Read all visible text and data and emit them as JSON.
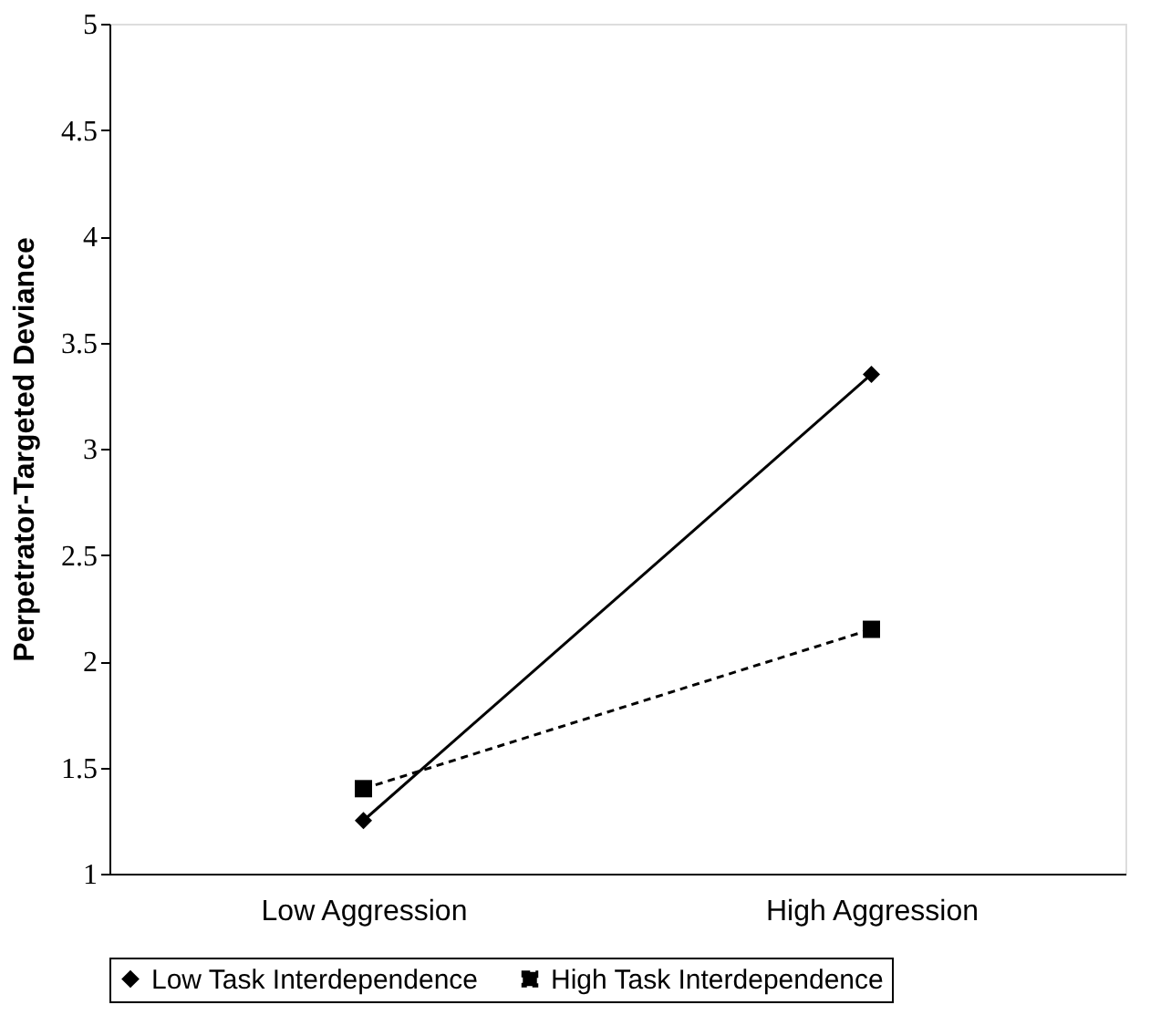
{
  "chart_data": {
    "type": "line",
    "ylabel": "Perpetrator-Targeted Deviance",
    "categories": [
      "Low Aggression",
      "High Aggression"
    ],
    "series": [
      {
        "name": "Low Task Interdependence",
        "color": "#000000",
        "values": [
          1.25,
          3.35
        ],
        "marker": "diamond",
        "line_style": "solid"
      },
      {
        "name": "High Task Interdependence",
        "color": "#000000",
        "values": [
          1.4,
          2.15
        ],
        "marker": "square",
        "line_style": "dashed"
      }
    ],
    "ylim": [
      1,
      5
    ],
    "yticks": [
      1,
      1.5,
      2,
      2.5,
      3,
      3.5,
      4,
      4.5,
      5
    ],
    "grid": false,
    "legend": "bottom"
  }
}
